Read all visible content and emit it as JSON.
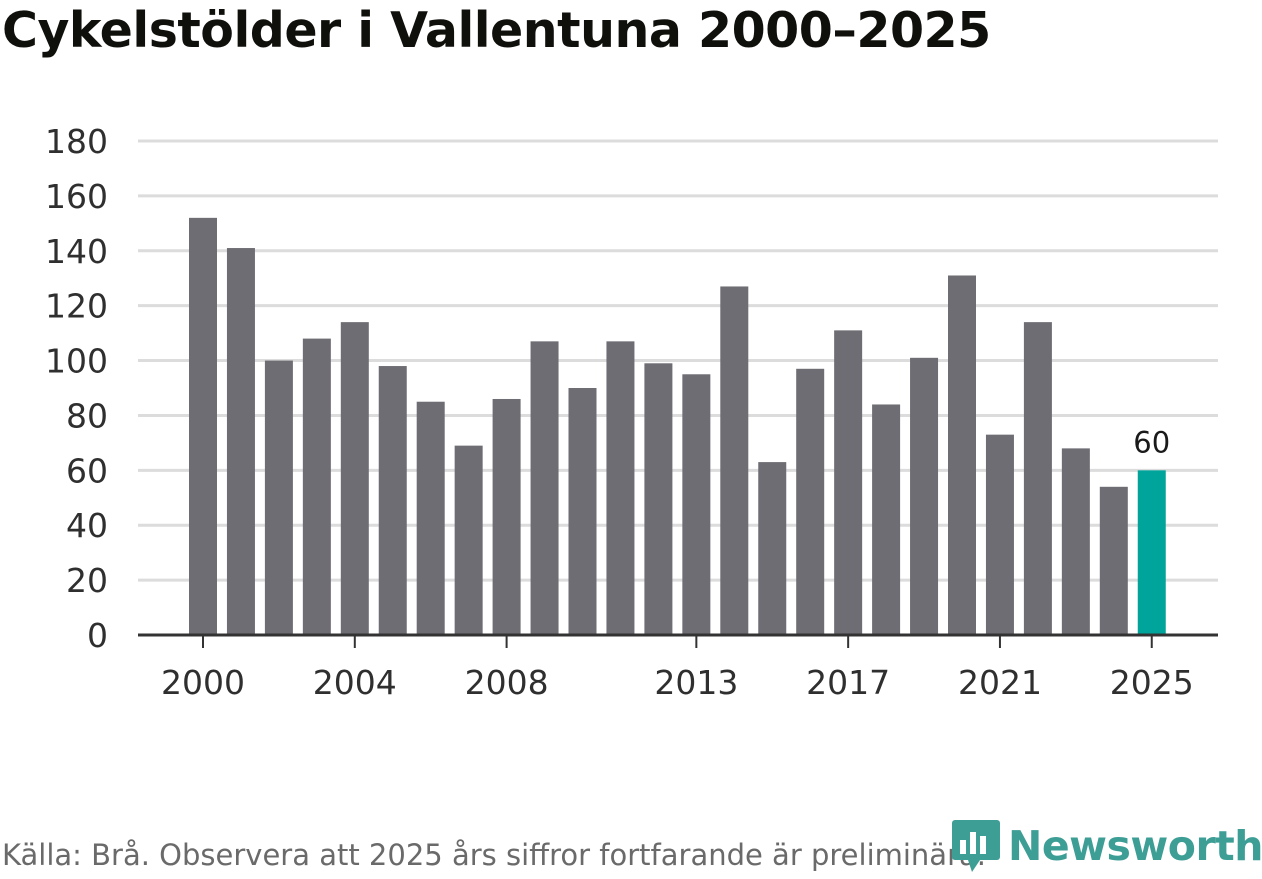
{
  "header": {
    "title": "Cykelstölder i Vallentuna 2000–2025"
  },
  "chart_data": {
    "type": "bar",
    "title": "Cykelstölder i Vallentuna 2000–2025",
    "xlabel": "",
    "ylabel": "",
    "ylim": [
      0,
      180
    ],
    "yticks": [
      0,
      20,
      40,
      60,
      80,
      100,
      120,
      140,
      160,
      180
    ],
    "xtick_labels": [
      "2000",
      "2004",
      "2008",
      "2013",
      "2017",
      "2021",
      "2025"
    ],
    "categories": [
      "2000",
      "2001",
      "2002",
      "2003",
      "2004",
      "2005",
      "2006",
      "2007",
      "2008",
      "2009",
      "2010",
      "2011",
      "2012",
      "2013",
      "2014",
      "2015",
      "2016",
      "2017",
      "2018",
      "2019",
      "2020",
      "2021",
      "2022",
      "2023",
      "2024",
      "2025"
    ],
    "values": [
      152,
      141,
      100,
      108,
      114,
      98,
      85,
      69,
      86,
      107,
      90,
      107,
      99,
      95,
      127,
      63,
      97,
      111,
      84,
      101,
      131,
      73,
      114,
      68,
      54,
      60
    ],
    "highlight": {
      "category": "2025",
      "label": "60"
    },
    "grid": true,
    "colors": {
      "bar": "#6e6d73",
      "highlight": "#00a49a",
      "grid": "#dcdcdc",
      "axis": "#333333"
    }
  },
  "footer": {
    "source": "Källa: Brå. Observera att 2025 års siffror fortfarande är preliminära.",
    "brand": "Newsworthy",
    "brand_icon": "newsworthy-logo-icon",
    "brand_color": "#3d9e96"
  }
}
